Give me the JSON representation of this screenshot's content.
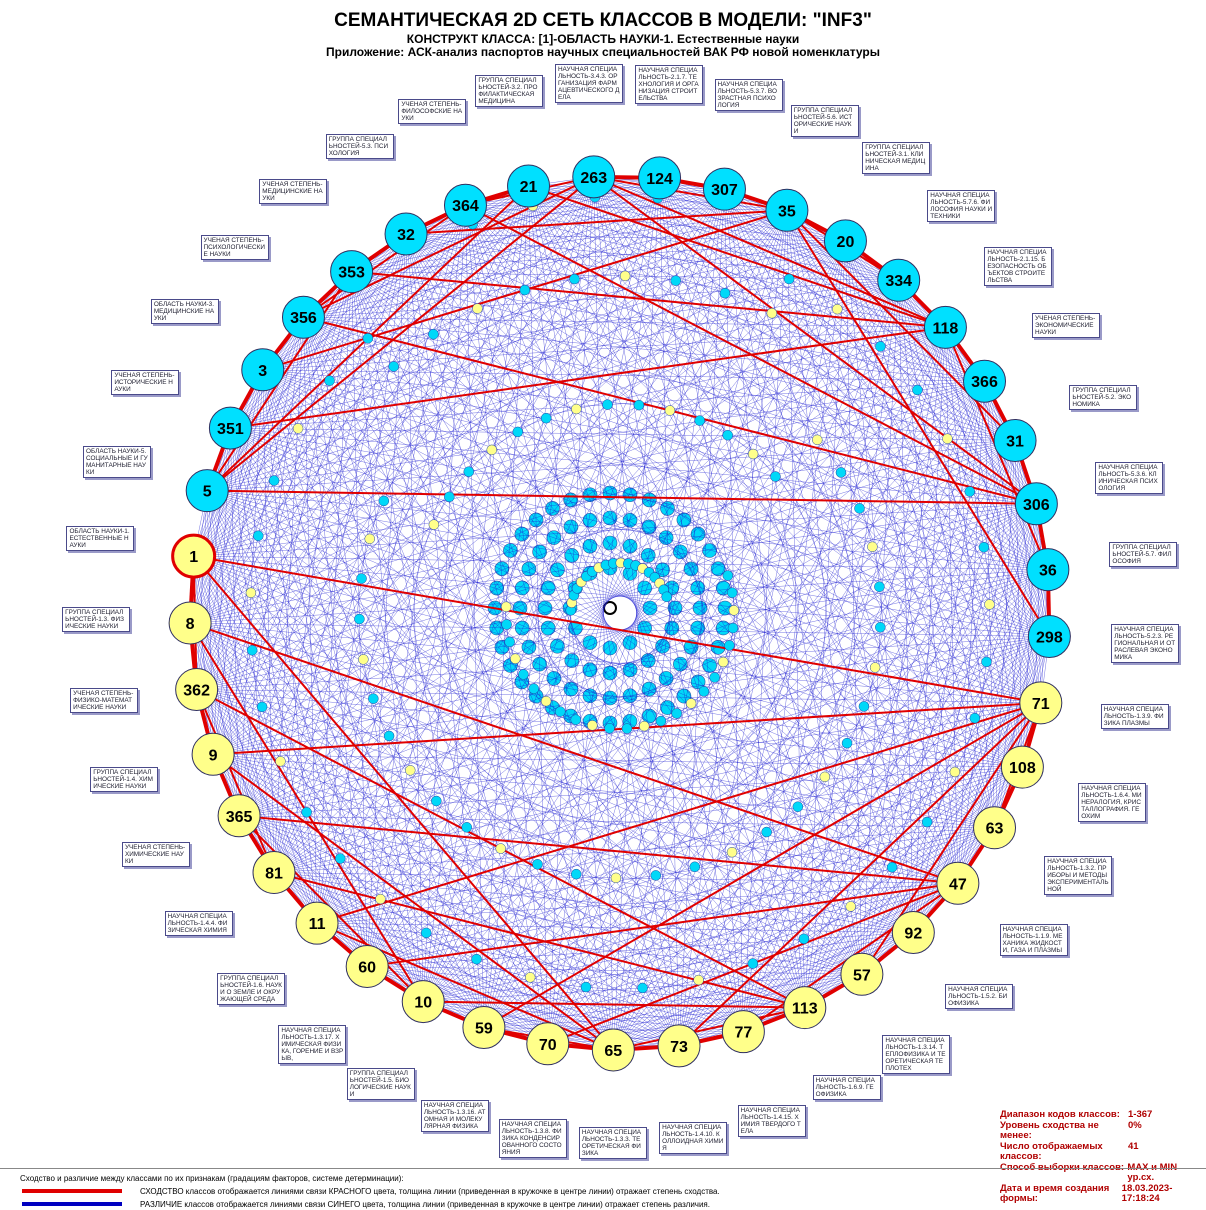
{
  "header": {
    "title": "СЕМАНТИЧЕСКАЯ 2D СЕТЬ КЛАССОВ В МОДЕЛИ: \"INF3\"",
    "subtitle": "КОНСТРУКТ КЛАССА: [1]-ОБЛАСТЬ НАУКИ-1. Естественные науки",
    "application": "Приложение: АСК-анализ паспортов научных специальностей ВАК РФ новой номенклатуры"
  },
  "nodes": [
    {
      "id": "263",
      "color": "#00e0ff",
      "label": "НАУЧНАЯ СПЕЦИАЛЬНОСТЬ-3.4.3. Организация фармацевтического дела"
    },
    {
      "id": "124",
      "color": "#00e0ff",
      "label": "НАУЧНАЯ СПЕЦИАЛЬНОСТЬ-2.1.7. Технология и организация строительства"
    },
    {
      "id": "307",
      "color": "#00e0ff",
      "label": "НАУЧНАЯ СПЕЦИАЛЬНОСТЬ-5.3.7. Возрастная психология"
    },
    {
      "id": "35",
      "color": "#00e0ff",
      "label": "ГРУППА СПЕЦИАЛЬНОСТЕЙ-5.6. Исторические науки"
    },
    {
      "id": "20",
      "color": "#00e0ff",
      "label": "ГРУППА СПЕЦИАЛЬНОСТЕЙ-3.1. Клиническая медицина"
    },
    {
      "id": "334",
      "color": "#00e0ff",
      "label": "НАУЧНАЯ СПЕЦИАЛЬНОСТЬ-5.7.6. Философия науки и техники"
    },
    {
      "id": "118",
      "color": "#00e0ff",
      "label": "НАУЧНАЯ СПЕЦИАЛЬНОСТЬ-2.1.15. Безопасность объектов строительства"
    },
    {
      "id": "366",
      "color": "#00e0ff",
      "label": "УЧЕНАЯ СТЕПЕНЬ-Экономические науки"
    },
    {
      "id": "31",
      "color": "#00e0ff",
      "label": "ГРУППА СПЕЦИАЛЬНОСТЕЙ-5.2. Экономика"
    },
    {
      "id": "306",
      "color": "#00e0ff",
      "label": "НАУЧНАЯ СПЕЦИАЛЬНОСТЬ-5.3.6. Клиническая психология"
    },
    {
      "id": "36",
      "color": "#00e0ff",
      "label": "ГРУППА СПЕЦИАЛЬНОСТЕЙ-5.7. Философия"
    },
    {
      "id": "298",
      "color": "#00e0ff",
      "label": "НАУЧНАЯ СПЕЦИАЛЬНОСТЬ-5.2.3. Региональная и отраслевая экономика"
    },
    {
      "id": "71",
      "color": "#ffff8a",
      "label": "НАУЧНАЯ СПЕЦИАЛЬНОСТЬ-1.3.9. Физика плазмы"
    },
    {
      "id": "108",
      "color": "#ffff8a",
      "label": "НАУЧНАЯ СПЕЦИАЛЬНОСТЬ-1.6.4. Минералогия, кристаллография. Геохим"
    },
    {
      "id": "63",
      "color": "#ffff8a",
      "label": "НАУЧНАЯ СПЕЦИАЛЬНОСТЬ-1.3.2. Приборы и методы экспериментальной"
    },
    {
      "id": "47",
      "color": "#ffff8a",
      "label": "НАУЧНАЯ СПЕЦИАЛЬНОСТЬ-1.1.9. Механика жидкости, газа и плазмы"
    },
    {
      "id": "92",
      "color": "#ffff8a",
      "label": "НАУЧНАЯ СПЕЦИАЛЬНОСТЬ-1.5.2. Биофизика"
    },
    {
      "id": "57",
      "color": "#ffff8a",
      "label": "НАУЧНАЯ СПЕЦИАЛЬНОСТЬ-1.3.14. Теплофизика и теоретическая теплотех"
    },
    {
      "id": "113",
      "color": "#ffff8a",
      "label": "НАУЧНАЯ СПЕЦИАЛЬНОСТЬ-1.6.9. Геофизика"
    },
    {
      "id": "77",
      "color": "#ffff8a",
      "label": "НАУЧНАЯ СПЕЦИАЛЬНОСТЬ-1.4.15. Химия твердого тела"
    },
    {
      "id": "73",
      "color": "#ffff8a",
      "label": "НАУЧНАЯ СПЕЦИАЛЬНОСТЬ-1.4.10. Коллоидная химия"
    },
    {
      "id": "65",
      "color": "#ffff8a",
      "label": "НАУЧНАЯ СПЕЦИАЛЬНОСТЬ-1.3.3. Теоретическая физика"
    },
    {
      "id": "70",
      "color": "#ffff8a",
      "label": "НАУЧНАЯ СПЕЦИАЛЬНОСТЬ-1.3.8. Физика конденсированного состояния"
    },
    {
      "id": "59",
      "color": "#ffff8a",
      "label": "НАУЧНАЯ СПЕЦИАЛЬНОСТЬ-1.3.16. Атомная и молекулярная физика"
    },
    {
      "id": "10",
      "color": "#ffff8a",
      "label": "ГРУППА СПЕЦИАЛЬНОСТЕЙ-1.5. Биологические науки"
    },
    {
      "id": "60",
      "color": "#ffff8a",
      "label": "НАУЧНАЯ СПЕЦИАЛЬНОСТЬ-1.3.17. Химическая физика, горение и взрыв,"
    },
    {
      "id": "11",
      "color": "#ffff8a",
      "label": "ГРУППА СПЕЦИАЛЬНОСТЕЙ-1.6. Науки о Земле и окружающей среда"
    },
    {
      "id": "81",
      "color": "#ffff8a",
      "label": "НАУЧНАЯ СПЕЦИАЛЬНОСТЬ-1.4.4. Физическая химия"
    },
    {
      "id": "365",
      "color": "#ffff8a",
      "label": "УЧЕНАЯ СТЕПЕНЬ-Химические науки"
    },
    {
      "id": "9",
      "color": "#ffff8a",
      "label": "ГРУППА СПЕЦИАЛЬНОСТЕЙ-1.4. Химические науки"
    },
    {
      "id": "362",
      "color": "#ffff8a",
      "label": "УЧЕНАЯ СТЕПЕНЬ-Физико-математические науки"
    },
    {
      "id": "8",
      "color": "#ffff8a",
      "label": "ГРУППА СПЕЦИАЛЬНОСТЕЙ-1.3. Физические науки"
    },
    {
      "id": "1",
      "color": "#ffff8a",
      "label": "ОБЛАСТЬ НАУКИ-1. Естественные науки"
    },
    {
      "id": "5",
      "color": "#00e0ff",
      "label": "ОБЛАСТЬ НАУКИ-5. Социальные и гуманитарные науки"
    },
    {
      "id": "351",
      "color": "#00e0ff",
      "label": "УЧЕНАЯ СТЕПЕНЬ-Исторические науки"
    },
    {
      "id": "3",
      "color": "#00e0ff",
      "label": "ОБЛАСТЬ НАУКИ-3. Медицинские науки"
    },
    {
      "id": "356",
      "color": "#00e0ff",
      "label": "УЧЕНАЯ СТЕПЕНЬ-Психологические науки"
    },
    {
      "id": "353",
      "color": "#00e0ff",
      "label": "УЧЕНАЯ СТЕПЕНЬ-Медицинские науки"
    },
    {
      "id": "32",
      "color": "#00e0ff",
      "label": "ГРУППА СПЕЦИАЛЬНОСТЕЙ-5.3. Психология"
    },
    {
      "id": "364",
      "color": "#00e0ff",
      "label": "УЧЕНАЯ СТЕПЕНЬ-Философские науки"
    },
    {
      "id": "21",
      "color": "#00e0ff",
      "label": "ГРУППА СПЕЦИАЛЬНОСТЕЙ-3.2. Профилактическая медицина"
    }
  ],
  "info": [
    {
      "key": "Диапазон кодов классов:",
      "value": "1-367"
    },
    {
      "key": "Уровень сходства не менее:",
      "value": "0%"
    },
    {
      "key": "Число отображаемых классов:",
      "value": "41"
    },
    {
      "key": "Способ выборки классов:",
      "value": "MAX и MIN ур.сх."
    },
    {
      "key": "Дата и время создания формы:",
      "value": "18.03.2023-17:18:24"
    }
  ],
  "legend": {
    "heading": "Сходство и различие между классами по их признакам (градациям факторов, системе детерминации):",
    "similarity": "СХОДСТВО классов отображается линиями связи КРАСНОГО цвета, толщина линии (приведенная в кружочке в центре линии) отражает степень сходства.",
    "difference": "РАЗЛИЧИЕ классов отображается линиями связи СИНЕГО цвета, толщина линии (приведенная в кружочке в центре линии) отражает степень различия."
  }
}
